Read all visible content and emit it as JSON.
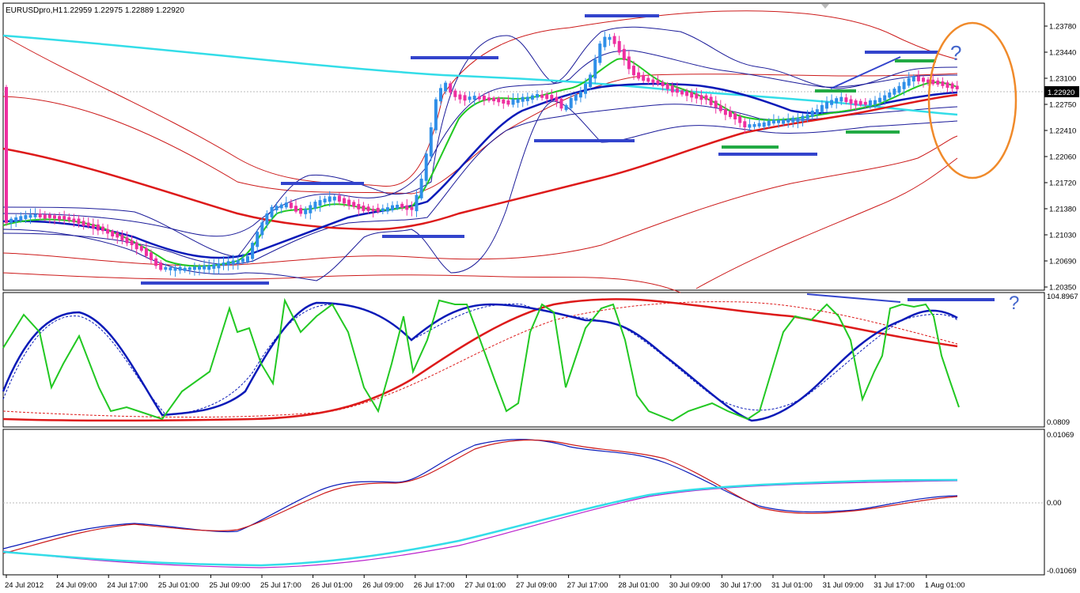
{
  "header": {
    "symbol": "EURUSDpro,H1",
    "ohlc": "1.22959 1.22975 1.22889 1.22920"
  },
  "colors": {
    "bull": "#2f8fe8",
    "bear": "#ee2fa0",
    "ma_fast": "#22c822",
    "ma_mid": "#0a1ab8",
    "ma_slow": "#dd1a1a",
    "ma_cyan": "#33dde8",
    "band_blue": "#1a1a99",
    "band_red": "#cc1a1a",
    "bar_blue": "#3344cc",
    "bar_green": "#22aa44",
    "orange": "#f08a2a",
    "annotation": "#4466cc"
  },
  "annotations": {
    "question_price": "?",
    "question_osc": "?"
  },
  "chart_data": [
    {
      "type": "candlestick",
      "title": "",
      "y_ticks": [
        "1.23780",
        "1.23440",
        "1.23100",
        "1.22750",
        "1.22410",
        "1.22060",
        "1.21720",
        "1.21380",
        "1.21030",
        "1.20690",
        "1.20350"
      ],
      "ylim": [
        1.2025,
        1.2393
      ],
      "current_price": "1.22920",
      "current_price_value": 1.2292,
      "overlays": [
        "MA fast (green)",
        "MA (blue)",
        "MA slow (red)",
        "MA long (cyan)",
        "Bollinger bands (blue, red)"
      ]
    },
    {
      "type": "line",
      "title": "",
      "y_ticks": [
        "104.8967",
        "0.0809"
      ],
      "ylim": [
        -5,
        110
      ],
      "series": [
        {
          "color": "green",
          "values": [
            75,
            100,
            80,
            10,
            60,
            90,
            60,
            30,
            5,
            0,
            40,
            70,
            95,
            90,
            110,
            70,
            100,
            90,
            60,
            50,
            40,
            100,
            95,
            70,
            15,
            20,
            55,
            60,
            75,
            90,
            110,
            95,
            100,
            80,
            60,
            40
          ]
        },
        {
          "color": "blue",
          "values": [
            20,
            80,
            90,
            50,
            10,
            25,
            30,
            50,
            100,
            110,
            105,
            70,
            80,
            110,
            100,
            90,
            75,
            40,
            20,
            5,
            30,
            50,
            80,
            105,
            95
          ]
        },
        {
          "color": "red",
          "values": [
            0,
            0,
            0,
            10,
            30,
            60,
            85,
            100,
            108,
            110,
            105,
            95,
            85,
            75
          ]
        }
      ]
    },
    {
      "type": "line",
      "title": "",
      "y_ticks": [
        "0.01069",
        "0.00",
        "-0.01069"
      ],
      "ylim": [
        -0.012,
        0.0113
      ],
      "series": [
        {
          "color": "blue",
          "values": [
            -0.007,
            -0.004,
            -0.003,
            -0.0035,
            0.0005,
            0.003,
            0.003,
            0.009,
            0.0105,
            0.01,
            0.008,
            0.004,
            -0.001,
            -0.0015,
            -0.0005,
            0.001
          ]
        },
        {
          "color": "red",
          "values": [
            -0.0075,
            -0.0045,
            -0.0032,
            -0.0038,
            0.0002,
            0.0028,
            0.0029,
            0.0085,
            0.0104,
            0.0095,
            0.0075,
            0.0035,
            -0.0008,
            -0.0015,
            -0.0006,
            0.0009
          ]
        },
        {
          "color": "cyan",
          "values": [
            -0.008,
            -0.0105,
            -0.0105,
            -0.008,
            -0.004,
            -0.0005,
            0.0025,
            0.0033,
            0.0035
          ]
        },
        {
          "color": "magenta",
          "values": [
            -0.008,
            -0.0108,
            -0.011,
            -0.0085,
            -0.0045,
            -0.0005,
            0.0025,
            0.0033,
            0.0035
          ]
        }
      ]
    }
  ],
  "x_axis": {
    "labels": [
      "24 Jul 2012",
      "24 Jul 09:00",
      "24 Jul 17:00",
      "25 Jul 01:00",
      "25 Jul 09:00",
      "25 Jul 17:00",
      "26 Jul 01:00",
      "26 Jul 09:00",
      "26 Jul 17:00",
      "27 Jul 01:00",
      "27 Jul 09:00",
      "27 Jul 17:00",
      "28 Jul 01:00",
      "30 Jul 09:00",
      "30 Jul 17:00",
      "31 Jul 01:00",
      "31 Jul 09:00",
      "31 Jul 17:00",
      "1 Aug 01:00"
    ]
  }
}
